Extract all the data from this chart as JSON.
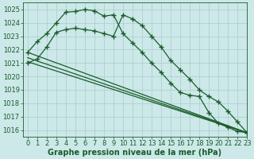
{
  "xlabel": "Graphe pression niveau de la mer (hPa)",
  "background_color": "#cce8e8",
  "grid_color": "#aacccc",
  "line_color": "#1a5c2a",
  "ylim": [
    1015.5,
    1025.5
  ],
  "xlim": [
    -0.5,
    23
  ],
  "yticks": [
    1016,
    1017,
    1018,
    1019,
    1020,
    1021,
    1022,
    1023,
    1024,
    1025
  ],
  "xticks": [
    0,
    1,
    2,
    3,
    4,
    5,
    6,
    7,
    8,
    9,
    10,
    11,
    12,
    13,
    14,
    15,
    16,
    17,
    18,
    19,
    20,
    21,
    22,
    23
  ],
  "series_with_markers": [
    {
      "x": [
        0,
        1,
        2,
        3,
        4,
        5,
        6,
        7,
        8,
        9,
        10,
        11,
        12,
        13,
        14,
        15,
        16,
        17,
        18,
        19,
        20,
        21,
        22,
        23
      ],
      "y": [
        1021.8,
        1022.6,
        1023.2,
        1024.0,
        1024.8,
        1024.85,
        1025.0,
        1024.9,
        1024.5,
        1024.6,
        1023.2,
        1022.5,
        1021.8,
        1021.0,
        1020.3,
        1019.5,
        1018.8,
        1018.6,
        1018.5,
        1017.3,
        1016.5,
        1016.2,
        1015.9,
        1015.8
      ]
    },
    {
      "x": [
        0,
        1,
        2,
        3,
        4,
        5,
        6,
        7,
        8,
        9,
        10,
        11,
        12,
        13,
        14,
        15,
        16,
        17,
        18,
        19,
        20,
        21,
        22,
        23
      ],
      "y": [
        1021.0,
        1021.3,
        1022.2,
        1023.3,
        1023.5,
        1023.6,
        1023.5,
        1023.4,
        1023.2,
        1023.0,
        1024.6,
        1024.3,
        1023.8,
        1023.0,
        1022.2,
        1021.2,
        1020.5,
        1019.8,
        1019.0,
        1018.5,
        1018.1,
        1017.4,
        1016.6,
        1015.8
      ]
    }
  ],
  "series_straight": [
    {
      "x": [
        0,
        23
      ],
      "y": [
        1021.8,
        1015.8
      ]
    },
    {
      "x": [
        0,
        23
      ],
      "y": [
        1021.4,
        1015.8
      ]
    },
    {
      "x": [
        0,
        23
      ],
      "y": [
        1021.1,
        1015.8
      ]
    }
  ],
  "marker": "+",
  "markersize": 4,
  "markeredgewidth": 1.0,
  "linewidth": 0.9,
  "straight_linewidth": 0.9,
  "xlabel_fontsize": 7,
  "tick_fontsize": 6,
  "xlabel_color": "#1a5c2a",
  "tick_color": "#1a5c2a",
  "spine_color": "#1a5c2a"
}
